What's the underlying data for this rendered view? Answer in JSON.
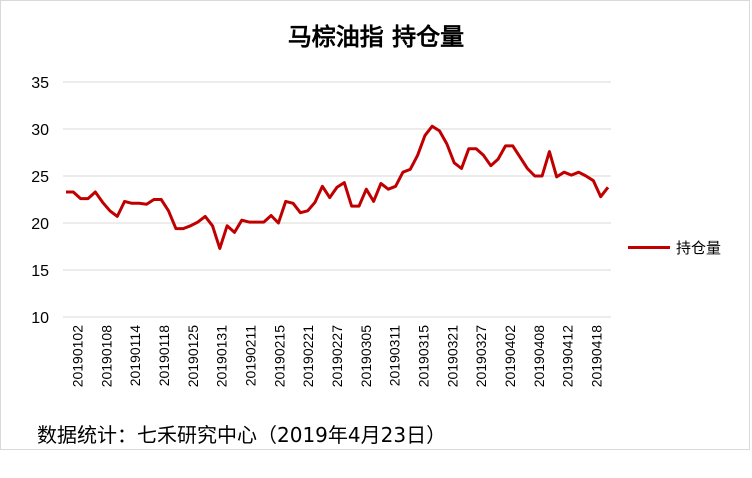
{
  "chart_data": {
    "type": "line",
    "title": "马棕油指 持仓量",
    "xlabel": "",
    "ylabel": "",
    "ylim": [
      10,
      35
    ],
    "yticks": [
      10,
      15,
      20,
      25,
      30,
      35
    ],
    "grid": true,
    "legend_position": "right",
    "line_color": "#c00000",
    "x_tick_labels": [
      "20190102",
      "20190108",
      "20190114",
      "20190118",
      "20190125",
      "20190131",
      "20190211",
      "20190215",
      "20190221",
      "20190227",
      "20190305",
      "20190311",
      "20190315",
      "20190321",
      "20190327",
      "20190402",
      "20190408",
      "20190412",
      "20190418"
    ],
    "series": [
      {
        "name": "持仓量",
        "values": [
          23.3,
          23.3,
          22.6,
          22.6,
          23.3,
          22.2,
          21.3,
          20.7,
          22.3,
          22.1,
          22.1,
          22.0,
          22.5,
          22.5,
          21.3,
          19.4,
          19.4,
          19.7,
          20.1,
          20.7,
          19.7,
          17.3,
          19.7,
          19.0,
          20.3,
          20.1,
          20.1,
          20.1,
          20.8,
          20.0,
          22.3,
          22.1,
          21.1,
          21.3,
          22.2,
          23.9,
          22.7,
          23.8,
          24.3,
          21.8,
          21.8,
          23.6,
          22.3,
          24.2,
          23.6,
          23.9,
          25.4,
          25.7,
          27.2,
          29.3,
          30.3,
          29.8,
          28.4,
          26.4,
          25.8,
          27.9,
          27.9,
          27.2,
          26.1,
          26.8,
          28.2,
          28.2,
          27.0,
          25.8,
          25.0,
          25.0,
          27.6,
          24.9,
          25.4,
          25.1,
          25.4,
          25.0,
          24.5,
          22.8,
          23.8
        ]
      }
    ]
  },
  "source_note": "数据统计：七禾研究中心（2019年4月23日）"
}
